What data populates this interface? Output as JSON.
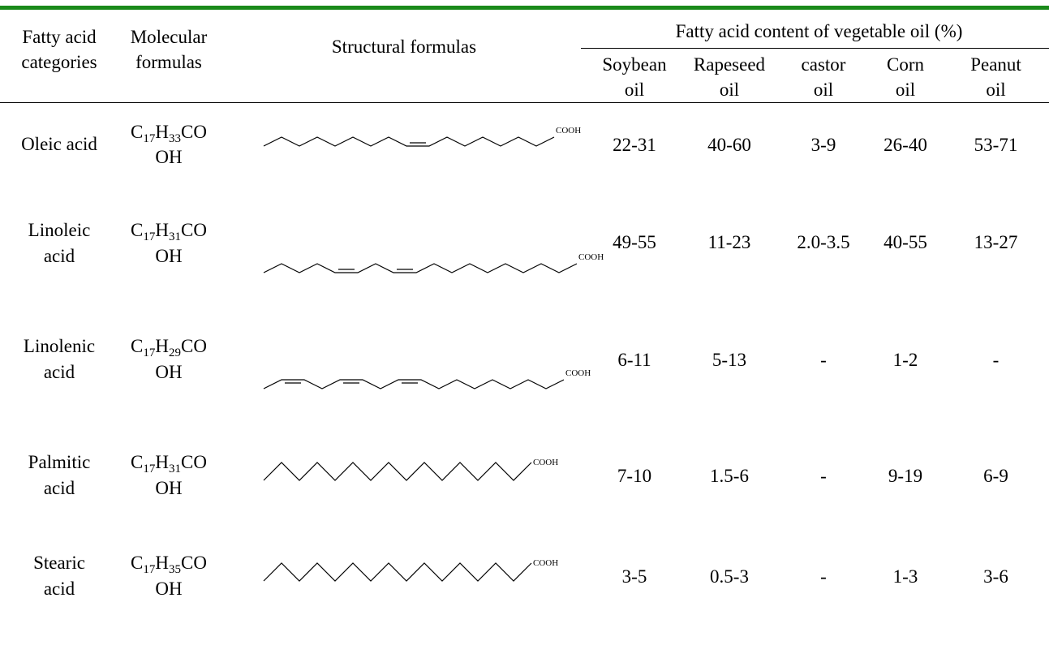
{
  "headers": {
    "category": [
      "Fatty acid",
      "categories"
    ],
    "molecular": [
      "Molecular",
      "formulas"
    ],
    "structural": "Structural formulas",
    "content_group": "Fatty acid content of vegetable oil (%)",
    "oils": [
      [
        "Soybean",
        "oil"
      ],
      [
        "Rapeseed",
        "oil"
      ],
      [
        "castor",
        "oil"
      ],
      [
        "Corn",
        "oil"
      ],
      [
        "Peanut",
        "oil"
      ]
    ]
  },
  "structure_label": "COOH",
  "rows": [
    {
      "name": [
        "Oleic acid"
      ],
      "formula": {
        "c": "C",
        "c_sub": "17",
        "h": "H",
        "h_sub": "33",
        "tail1": "CO",
        "tail2": "OH"
      },
      "values": [
        "22-31",
        "40-60",
        "3-9",
        "26-40",
        "53-71"
      ]
    },
    {
      "name": [
        "Linoleic",
        "acid"
      ],
      "formula": {
        "c": "C",
        "c_sub": "17",
        "h": "H",
        "h_sub": "31",
        "tail1": "CO",
        "tail2": "OH"
      },
      "values": [
        "49-55",
        "11-23",
        "2.0-3.5",
        "40-55",
        "13-27"
      ]
    },
    {
      "name": [
        "Linolenic",
        "acid"
      ],
      "formula": {
        "c": "C",
        "c_sub": "17",
        "h": "H",
        "h_sub": "29",
        "tail1": "CO",
        "tail2": "OH"
      },
      "values": [
        "6-11",
        "5-13",
        "-",
        "1-2",
        "-"
      ]
    },
    {
      "name": [
        "Palmitic",
        "acid"
      ],
      "formula": {
        "c": "C",
        "c_sub": "17",
        "h": "H",
        "h_sub": "31",
        "tail1": "CO",
        "tail2": "OH"
      },
      "values": [
        "7-10",
        "1.5-6",
        "-",
        "9-19",
        "6-9"
      ]
    },
    {
      "name": [
        "Stearic",
        "acid"
      ],
      "formula": {
        "c": "C",
        "c_sub": "17",
        "h": "H",
        "h_sub": "35",
        "tail1": "CO",
        "tail2": "OH"
      },
      "values": [
        "3-5",
        "0.5-3",
        "-",
        "1-3",
        "3-6"
      ]
    }
  ]
}
